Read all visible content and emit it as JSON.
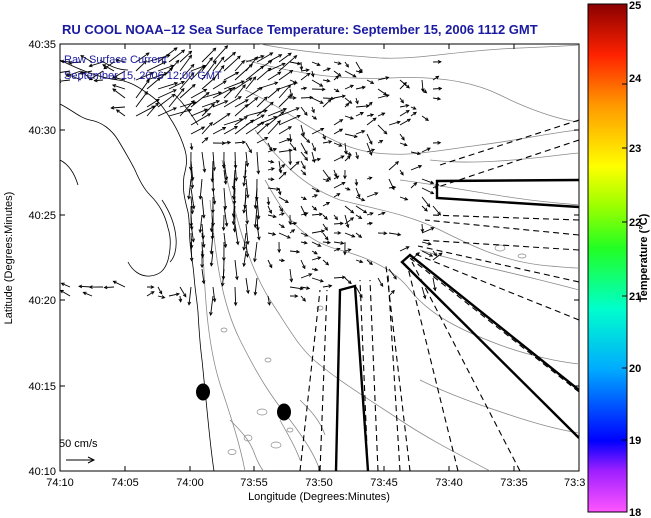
{
  "title": "RU COOL  NOAA–12  Sea Surface Temperature:  September 15, 2006 1112 GMT",
  "current_legend": {
    "line1": "Raw Surface Current",
    "line2": "September 15, 2006 12:00 GMT"
  },
  "scale_label": "50 cm/s",
  "x_axis": {
    "label": "Longitude (Degrees:Minutes)",
    "ticks": [
      "74:10",
      "74:05",
      "74:00",
      "73:55",
      "73:50",
      "73:45",
      "73:40",
      "73:35",
      "73:3"
    ]
  },
  "y_axis": {
    "label": "Latitude (Degrees:Minutes)",
    "ticks": [
      "40:35",
      "40:30",
      "40:25",
      "40:20",
      "40:15",
      "40:10"
    ]
  },
  "colorbar": {
    "label": "Temperature (°C)",
    "ticks": [
      "25",
      "24",
      "23",
      "22",
      "21",
      "20",
      "19",
      "18"
    ],
    "min": 18,
    "max": 25
  },
  "colors": {
    "title": "#1a1aa0",
    "coastline": "#000000",
    "bathymetry": "#8a8a8a",
    "vectors": "#000000"
  }
}
